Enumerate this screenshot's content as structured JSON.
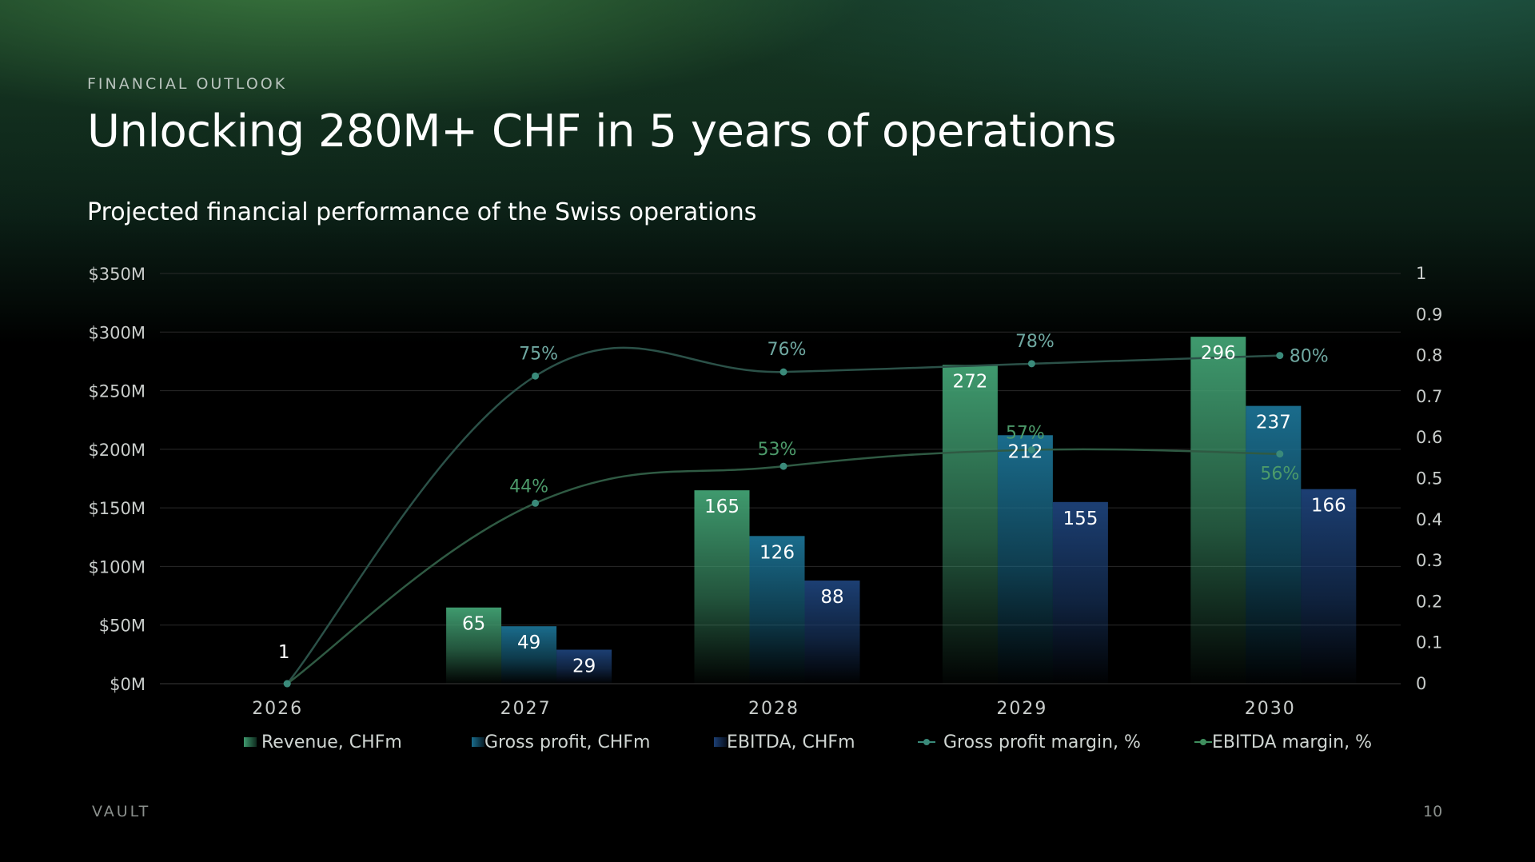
{
  "header": {
    "eyebrow": "FINANCIAL OUTLOOK",
    "title": "Unlocking 280M+ CHF in 5 years of operations",
    "subtitle": "Projected financial performance of the Swiss operations"
  },
  "footer": {
    "brand": "VAULT",
    "page_number": "10"
  },
  "colors": {
    "revenue": "#3f9a6e",
    "gross_profit": "#1a6c8c",
    "ebitda": "#1c3f73",
    "gross_margin_line": "#2b5148",
    "gross_margin_label": "#6fa8a1",
    "ebitda_margin_line": "#2f5a43",
    "ebitda_margin_label": "#4c9a6a",
    "marker": "#3a8a7a",
    "grid": "#2a2a2a",
    "axis_text": "#c8ccca"
  },
  "chart_data": {
    "type": "bar",
    "categories": [
      "2026",
      "2027",
      "2028",
      "2029",
      "2030"
    ],
    "series": [
      {
        "name": "Revenue, CHFm",
        "type": "bar",
        "values": [
          1,
          65,
          165,
          272,
          296
        ],
        "labels": [
          "1",
          "65",
          "165",
          "272",
          "296"
        ]
      },
      {
        "name": "Gross profit, CHFm",
        "type": "bar",
        "values": [
          0,
          49,
          126,
          212,
          237
        ],
        "labels": [
          "",
          "49",
          "126",
          "212",
          "237"
        ]
      },
      {
        "name": "EBITDA, CHFm",
        "type": "bar",
        "values": [
          0,
          29,
          88,
          155,
          166
        ],
        "labels": [
          "",
          "29",
          "88",
          "155",
          "166"
        ]
      },
      {
        "name": "Gross profit margin, %",
        "type": "line",
        "axis": "right",
        "values": [
          0,
          0.75,
          0.76,
          0.78,
          0.8
        ],
        "labels": [
          "",
          "75%",
          "76%",
          "78%",
          "80%"
        ]
      },
      {
        "name": "EBITDA margin, %",
        "type": "line",
        "axis": "right",
        "values": [
          0,
          0.44,
          0.53,
          0.57,
          0.56
        ],
        "labels": [
          "",
          "44%",
          "53%",
          "57%",
          "56%"
        ]
      }
    ],
    "y_left": {
      "ticks": [
        "$0M",
        "$50M",
        "$100M",
        "$150M",
        "$200M",
        "$250M",
        "$300M",
        "$350M"
      ],
      "ylim": [
        0,
        350
      ]
    },
    "y_right": {
      "ticks": [
        "0",
        "0.1",
        "0.2",
        "0.3",
        "0.4",
        "0.5",
        "0.6",
        "0.7",
        "0.8",
        "0.9",
        "1"
      ],
      "ylim": [
        0,
        1
      ]
    },
    "grid": true,
    "legend_position": "bottom"
  }
}
